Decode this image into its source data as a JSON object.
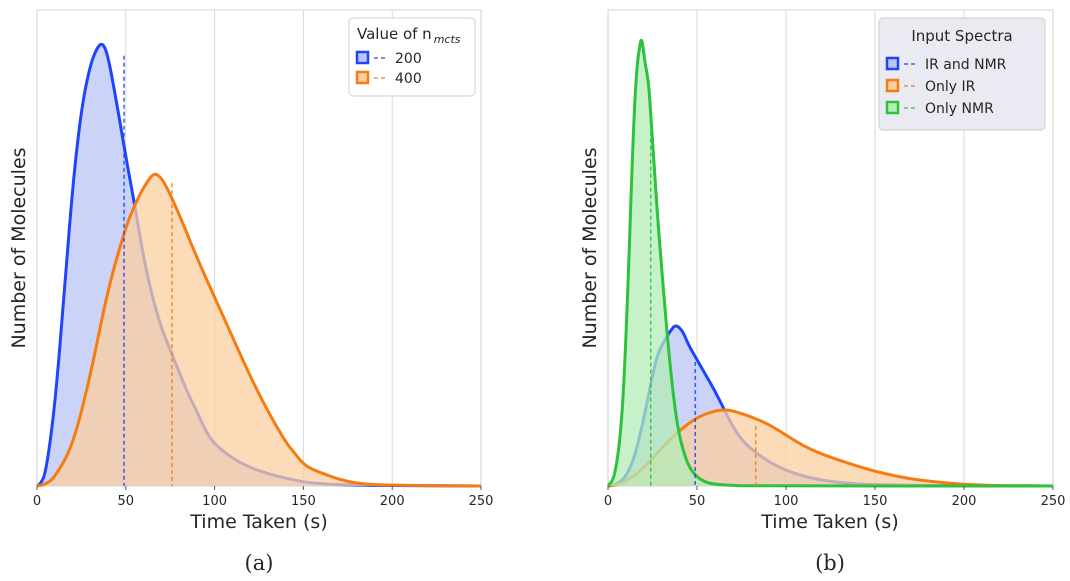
{
  "chart_data": [
    {
      "type": "area",
      "panel_label": "(a)",
      "xlabel": "Time Taken (s)",
      "ylabel": "Number of Molecules",
      "xlim": [
        0,
        250
      ],
      "xticks": [
        "0",
        "50",
        "100",
        "150",
        "200",
        "250"
      ],
      "ylim": [
        0,
        1
      ],
      "grid": "vertical",
      "legend": {
        "title": "Value of n",
        "title_subscript": "mcts",
        "placement": "top-right"
      },
      "series": [
        {
          "name": "200",
          "color": "#1f45fc",
          "fill": "#b9c6f6",
          "median": 49,
          "median_y": 0.98,
          "x": [
            0,
            2,
            5,
            10,
            15,
            20,
            25,
            30,
            34,
            37,
            40,
            45,
            50,
            55,
            60,
            65,
            70,
            75,
            80,
            85,
            90,
            95,
            100,
            110,
            120,
            130,
            140,
            150,
            160,
            170,
            180,
            200,
            220,
            250
          ],
          "y": [
            0,
            0.005,
            0.03,
            0.18,
            0.42,
            0.68,
            0.86,
            0.96,
            1.0,
            1.01,
            0.98,
            0.87,
            0.75,
            0.64,
            0.52,
            0.43,
            0.36,
            0.31,
            0.26,
            0.21,
            0.17,
            0.125,
            0.095,
            0.063,
            0.042,
            0.028,
            0.018,
            0.009,
            0.005,
            0.003,
            0.002,
            0.001,
            0.0005,
            0.0
          ]
        },
        {
          "name": "400",
          "color": "#f57c12",
          "fill": "#fbcfa1",
          "median": 76,
          "median_y": 0.69,
          "x": [
            0,
            5,
            10,
            20,
            30,
            40,
            50,
            55,
            60,
            65,
            68,
            72,
            80,
            90,
            100,
            110,
            120,
            130,
            140,
            145,
            150,
            155,
            160,
            170,
            180,
            190,
            200,
            220,
            250
          ],
          "y": [
            0,
            0.004,
            0.02,
            0.09,
            0.25,
            0.45,
            0.59,
            0.64,
            0.68,
            0.71,
            0.71,
            0.69,
            0.62,
            0.52,
            0.43,
            0.34,
            0.25,
            0.17,
            0.1,
            0.075,
            0.05,
            0.038,
            0.03,
            0.015,
            0.006,
            0.003,
            0.002,
            0.001,
            0.0
          ]
        }
      ]
    },
    {
      "type": "area",
      "panel_label": "(b)",
      "xlabel": "Time Taken (s)",
      "ylabel": "Number of Molecules",
      "xlim": [
        0,
        250
      ],
      "xticks": [
        "0",
        "50",
        "100",
        "150",
        "200",
        "250"
      ],
      "ylim": [
        0,
        1
      ],
      "grid": "vertical",
      "legend": {
        "title": "Input Spectra",
        "placement": "top-right"
      },
      "series": [
        {
          "name": "IR and NMR",
          "color": "#1f45fc",
          "fill": "#b9c6f6",
          "median": 49,
          "median_y": 0.28,
          "x": [
            0,
            5,
            10,
            15,
            20,
            25,
            28,
            32,
            35,
            38,
            42,
            45,
            50,
            55,
            60,
            65,
            70,
            75,
            80,
            90,
            100,
            110,
            120,
            130,
            140,
            150,
            170,
            200,
            250
          ],
          "y": [
            0,
            0.004,
            0.02,
            0.065,
            0.15,
            0.25,
            0.3,
            0.33,
            0.35,
            0.365,
            0.35,
            0.32,
            0.285,
            0.25,
            0.215,
            0.175,
            0.135,
            0.105,
            0.085,
            0.055,
            0.035,
            0.022,
            0.013,
            0.008,
            0.005,
            0.003,
            0.0015,
            0.0005,
            0.0
          ]
        },
        {
          "name": "Only IR",
          "color": "#f57c12",
          "fill": "#fbcfa1",
          "median": 83,
          "median_y": 0.135,
          "x": [
            0,
            5,
            10,
            20,
            30,
            40,
            50,
            60,
            66,
            70,
            80,
            90,
            100,
            110,
            120,
            130,
            140,
            150,
            160,
            170,
            180,
            190,
            200,
            210,
            220,
            250
          ],
          "y": [
            0,
            0.002,
            0.01,
            0.04,
            0.085,
            0.125,
            0.155,
            0.17,
            0.172,
            0.17,
            0.157,
            0.14,
            0.115,
            0.09,
            0.072,
            0.058,
            0.045,
            0.033,
            0.024,
            0.016,
            0.011,
            0.007,
            0.004,
            0.002,
            0.001,
            0.0
          ]
        },
        {
          "name": "Only NMR",
          "color": "#2cc23c",
          "fill": "#b3ecb7",
          "median": 24,
          "median_y": 0.8,
          "x": [
            0,
            4,
            8,
            11,
            14,
            16,
            18,
            19,
            20,
            21,
            22,
            23,
            24,
            26,
            28,
            30,
            32,
            34,
            36,
            38,
            40,
            43,
            46,
            50,
            55,
            60,
            70,
            80,
            250
          ],
          "y": [
            0,
            0.02,
            0.15,
            0.42,
            0.78,
            0.94,
            1.0,
            1.01,
            0.98,
            0.95,
            0.93,
            0.9,
            0.84,
            0.72,
            0.6,
            0.5,
            0.4,
            0.31,
            0.23,
            0.165,
            0.115,
            0.07,
            0.04,
            0.02,
            0.008,
            0.004,
            0.001,
            0.0,
            0.0
          ]
        }
      ]
    }
  ]
}
